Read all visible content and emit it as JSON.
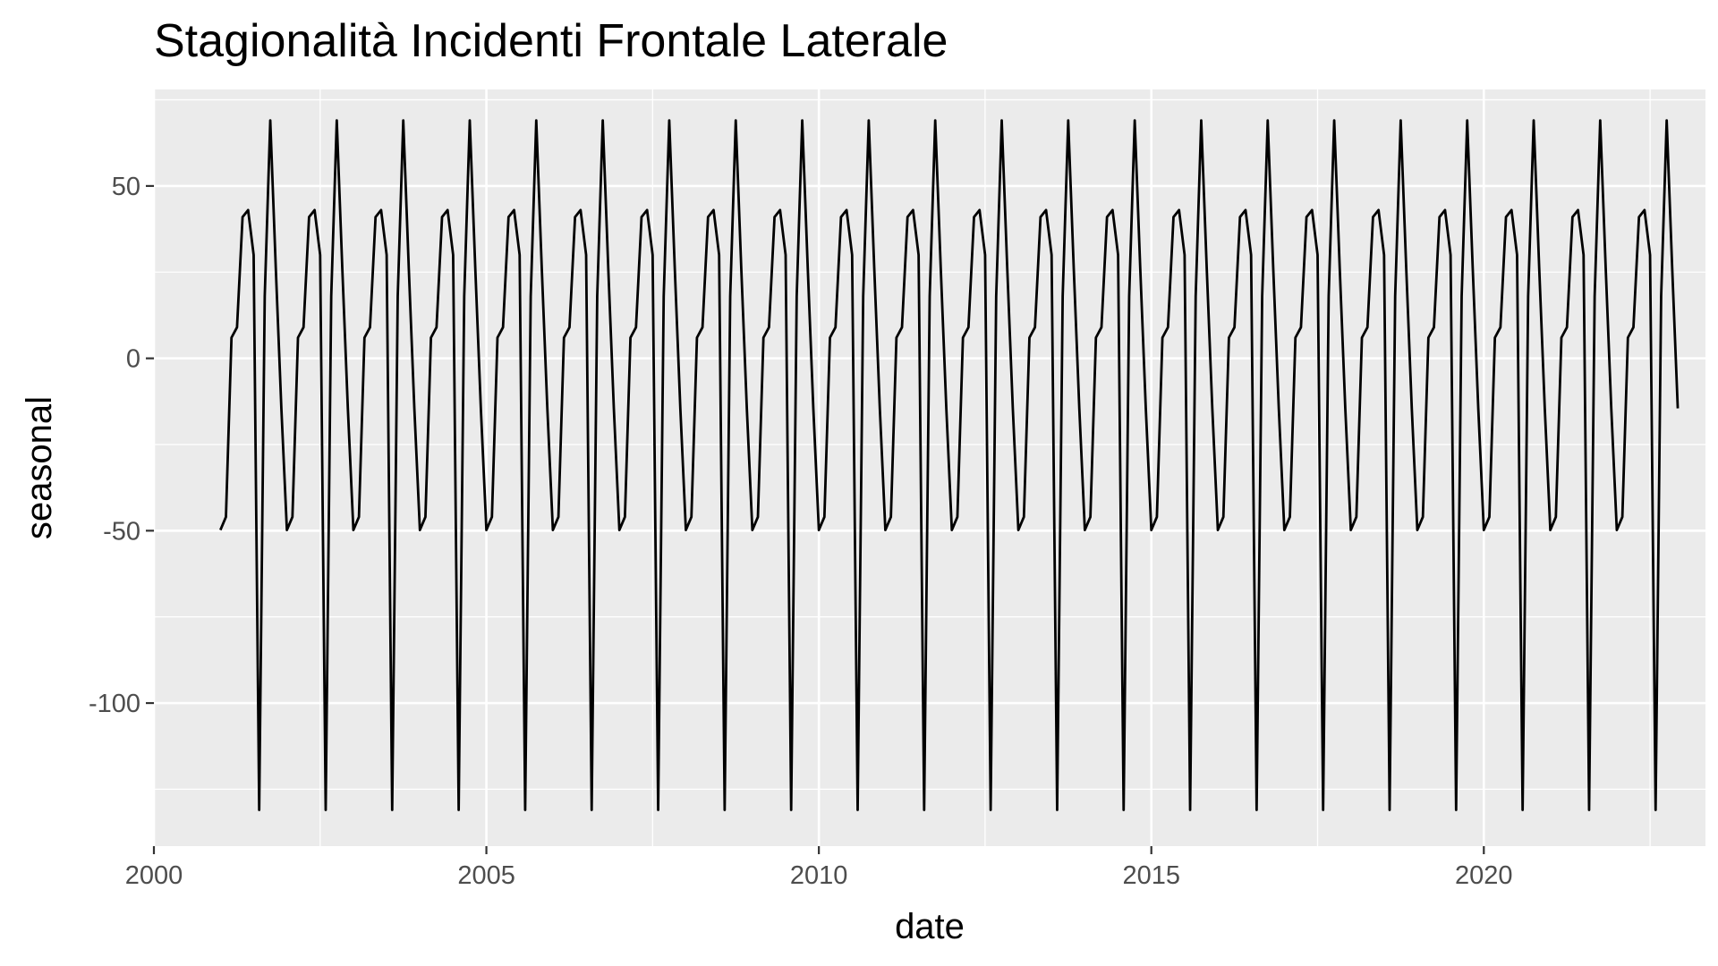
{
  "chart_data": {
    "type": "line",
    "title": "Stagionalità Incidenti Frontale Laterale",
    "xlabel": "date",
    "ylabel": "seasonal",
    "x_start": "2001-01",
    "x_end": "2022-12",
    "x_frequency": "monthly",
    "xlim": [
      "2000-01",
      "2023-05"
    ],
    "ylim": [
      -141.5,
      78
    ],
    "x_ticks": [
      {
        "value": "2000-01",
        "label": "2000"
      },
      {
        "value": "2005-01",
        "label": "2005"
      },
      {
        "value": "2010-01",
        "label": "2010"
      },
      {
        "value": "2015-01",
        "label": "2015"
      },
      {
        "value": "2020-01",
        "label": "2020"
      }
    ],
    "y_ticks": [
      {
        "value": 50,
        "label": "50"
      },
      {
        "value": 0,
        "label": "0"
      },
      {
        "value": -50,
        "label": "-50"
      },
      {
        "value": -100,
        "label": "-100"
      }
    ],
    "seasonal_pattern": {
      "months": [
        "Jan",
        "Feb",
        "Mar",
        "Apr",
        "May",
        "Jun",
        "Jul",
        "Aug",
        "Sep",
        "Oct",
        "Nov",
        "Dec"
      ],
      "values": [
        -49.8,
        -46.0,
        6.0,
        9.0,
        41.0,
        43.0,
        30.0,
        -131.0,
        18.0,
        69.0,
        26.0,
        -14.5
      ]
    },
    "years": 22,
    "series": [
      {
        "color": "#000000"
      }
    ],
    "grid": true,
    "legend": "none",
    "panel_background": "#ebebeb",
    "grid_color": "#ffffff"
  }
}
